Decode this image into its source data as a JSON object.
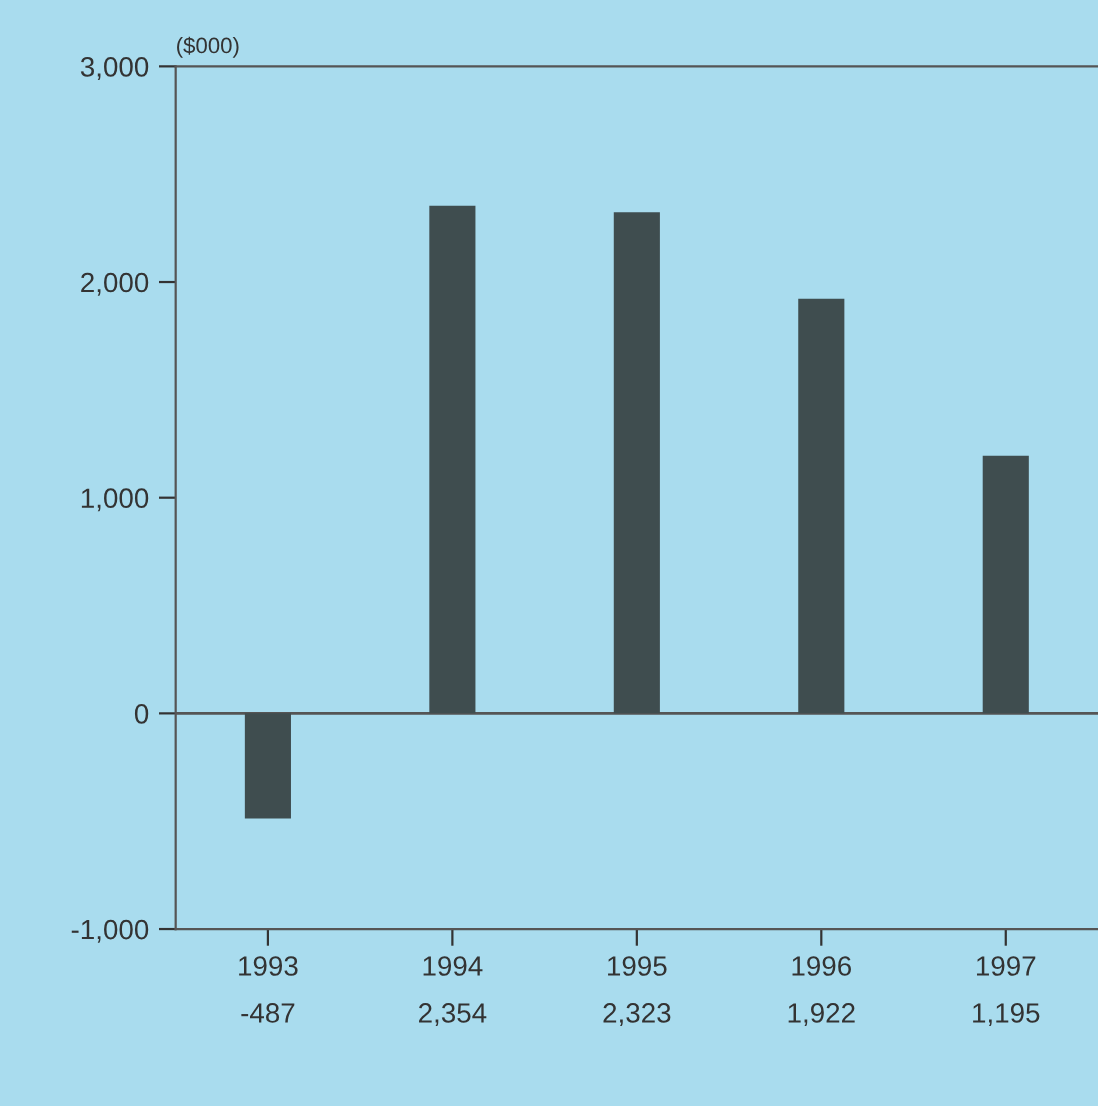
{
  "chart_data": {
    "type": "bar",
    "ylabel": "($000)",
    "categories": [
      "1993",
      "1994",
      "1995",
      "1996",
      "1997"
    ],
    "series": [
      {
        "color": "#3f4d4f",
        "values": [
          -487,
          2354,
          2323,
          1922,
          1195
        ],
        "value_labels": [
          "-487",
          "2,354",
          "2,323",
          "1,922",
          "1,195"
        ]
      }
    ],
    "ylim": [
      -1000,
      3000
    ],
    "yticks": [
      {
        "value": -1000,
        "label": "-1,000"
      },
      0,
      {
        "value": 1000,
        "label": "1,000"
      },
      {
        "value": 2000,
        "label": "2,000"
      },
      {
        "value": 3000,
        "label": "3,000"
      }
    ],
    "ref_lines": [
      {
        "axis": "y",
        "value": 0
      }
    ],
    "grid": false,
    "legend": false
  }
}
